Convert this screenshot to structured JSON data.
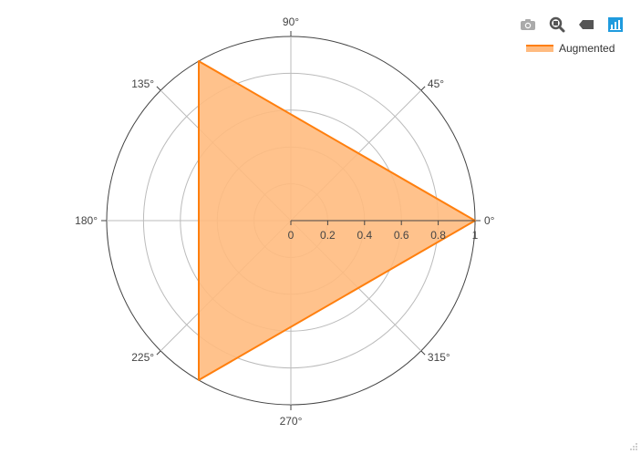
{
  "toolbar": {
    "icons": [
      "camera-icon",
      "zoom-icon",
      "eraser-icon",
      "bar-chart-icon"
    ],
    "colors": {
      "inactive": "#aaaaaa",
      "normal": "#555555",
      "active": "#1f9bde"
    }
  },
  "chart_data": {
    "type": "radar",
    "title": "",
    "radial_axis": {
      "range": [
        0,
        1
      ],
      "ticks": [
        "0",
        "0.2",
        "0.4",
        "0.6",
        "0.8",
        "1"
      ],
      "tick_values": [
        0,
        0.2,
        0.4,
        0.6,
        0.8,
        1
      ]
    },
    "angular_axis": {
      "ticks": [
        "0°",
        "45°",
        "90°",
        "135°",
        "180°",
        "225°",
        "270°",
        "315°"
      ],
      "tick_degrees": [
        0,
        45,
        90,
        135,
        180,
        225,
        270,
        315
      ]
    },
    "grid": true,
    "legend_position": "top-right",
    "series": [
      {
        "name": "Augmented",
        "color": "#ff7f0e",
        "fill": "#ffbb80",
        "points": [
          {
            "theta": 0,
            "r": 1
          },
          {
            "theta": 120,
            "r": 1
          },
          {
            "theta": 240,
            "r": 1
          }
        ]
      }
    ]
  }
}
